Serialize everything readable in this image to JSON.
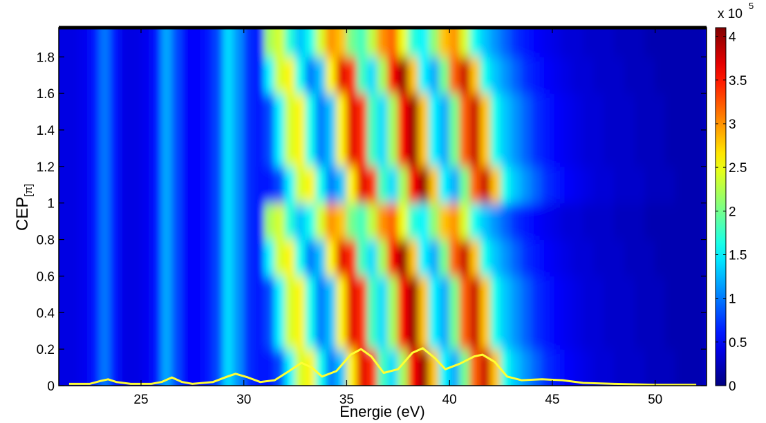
{
  "chart_data": {
    "type": "heatmap",
    "xlabel": "Energie (eV)",
    "ylabel": "CEP",
    "ylabel_sub": "[π]",
    "xlim": [
      21,
      52.5
    ],
    "ylim": [
      0,
      1.96
    ],
    "xticks": [
      25,
      30,
      35,
      40,
      45,
      50
    ],
    "yticks": [
      0,
      0.2,
      0.4,
      0.6,
      0.8,
      1,
      1.2,
      1.4,
      1.6,
      1.8
    ],
    "colormap": "jet",
    "clim": [
      0,
      4.1
    ],
    "colorbar_ticks": [
      0,
      0.5,
      1,
      1.5,
      2,
      2.5,
      3,
      3.5,
      4
    ],
    "colorbar_label": "x 10",
    "colorbar_exponent": "5",
    "x_edges": [
      21,
      21.5,
      22,
      22.5,
      23,
      23.5,
      24,
      24.5,
      25,
      25.5,
      26,
      26.5,
      27,
      27.5,
      28,
      28.5,
      29,
      29.5,
      30,
      30.5,
      31,
      31.5,
      32,
      32.5,
      33,
      33.5,
      34,
      34.5,
      35,
      35.5,
      36,
      36.5,
      37,
      37.5,
      38,
      38.5,
      39,
      39.5,
      40,
      40.5,
      41,
      41.5,
      42,
      42.5,
      43,
      43.5,
      44,
      44.5,
      45,
      45.5,
      46,
      46.5,
      47,
      47.5,
      48,
      48.5,
      49,
      49.5,
      50,
      50.5,
      51,
      51.5,
      52,
      52.5
    ],
    "y_edges": [
      0,
      0.2,
      0.4,
      0.6,
      0.8,
      1,
      1.2,
      1.4,
      1.6,
      1.8,
      1.96
    ],
    "z": [
      [
        0.4,
        0.4,
        0.45,
        0.6,
        1.0,
        0.6,
        0.4,
        0.4,
        0.45,
        0.6,
        1.2,
        0.8,
        0.5,
        0.5,
        0.6,
        0.8,
        1.4,
        1.1,
        0.7,
        0.6,
        0.6,
        0.8,
        1.5,
        2.4,
        2.6,
        1.6,
        1.0,
        1.3,
        2.6,
        3.7,
        3.4,
        1.8,
        1.4,
        2.2,
        3.6,
        4.0,
        2.8,
        1.5,
        1.2,
        2.0,
        3.2,
        3.8,
        2.8,
        1.6,
        1.3,
        1.1,
        0.9,
        0.7,
        0.6,
        0.5,
        0.45,
        0.4,
        0.35,
        0.35,
        0.3,
        0.3,
        0.3,
        0.25,
        0.25,
        0.25,
        0.2,
        0.2,
        0.2
      ],
      [
        0.4,
        0.4,
        0.45,
        0.6,
        1.0,
        0.6,
        0.4,
        0.4,
        0.45,
        0.6,
        1.2,
        0.8,
        0.5,
        0.5,
        0.6,
        0.8,
        1.4,
        1.1,
        0.7,
        0.6,
        0.8,
        1.5,
        2.4,
        2.6,
        1.6,
        1.0,
        1.3,
        2.6,
        3.7,
        3.4,
        1.8,
        1.4,
        2.2,
        3.6,
        4.0,
        2.8,
        1.5,
        1.2,
        2.0,
        3.2,
        3.8,
        2.8,
        1.6,
        1.3,
        1.1,
        0.9,
        0.7,
        0.6,
        0.5,
        0.45,
        0.4,
        0.35,
        0.35,
        0.3,
        0.3,
        0.3,
        0.25,
        0.25,
        0.25,
        0.2,
        0.2,
        0.2,
        0.2
      ],
      [
        0.4,
        0.4,
        0.45,
        0.6,
        1.0,
        0.6,
        0.4,
        0.4,
        0.45,
        0.6,
        1.2,
        0.8,
        0.5,
        0.5,
        0.6,
        0.8,
        1.4,
        1.1,
        0.7,
        0.6,
        0.8,
        1.5,
        2.4,
        2.6,
        1.6,
        1.0,
        1.3,
        2.6,
        3.7,
        3.4,
        1.8,
        1.4,
        2.2,
        3.6,
        4.0,
        2.8,
        1.5,
        1.2,
        2.0,
        3.2,
        3.8,
        2.8,
        1.6,
        1.3,
        1.1,
        0.9,
        0.7,
        0.6,
        0.5,
        0.45,
        0.4,
        0.35,
        0.35,
        0.3,
        0.3,
        0.3,
        0.25,
        0.25,
        0.25,
        0.2,
        0.2,
        0.2,
        0.2
      ],
      [
        0.4,
        0.4,
        0.45,
        0.6,
        1.0,
        0.6,
        0.4,
        0.4,
        0.45,
        0.6,
        1.2,
        0.8,
        0.5,
        0.5,
        0.6,
        0.8,
        1.4,
        1.1,
        0.7,
        0.6,
        1.5,
        2.4,
        2.6,
        1.6,
        1.0,
        1.3,
        2.6,
        3.7,
        3.4,
        1.8,
        1.4,
        2.2,
        3.6,
        4.0,
        2.8,
        1.5,
        1.2,
        2.0,
        3.2,
        3.8,
        2.8,
        1.6,
        1.3,
        1.1,
        0.9,
        0.7,
        0.6,
        0.5,
        0.45,
        0.4,
        0.35,
        0.35,
        0.3,
        0.3,
        0.3,
        0.25,
        0.25,
        0.25,
        0.2,
        0.2,
        0.2,
        0.2,
        0.2
      ],
      [
        0.4,
        0.4,
        0.45,
        0.6,
        1.0,
        0.6,
        0.4,
        0.4,
        0.45,
        0.6,
        1.2,
        0.8,
        0.5,
        0.5,
        0.6,
        0.8,
        1.4,
        1.1,
        0.7,
        0.6,
        2.2,
        2.4,
        1.7,
        1.3,
        1.6,
        2.4,
        3.0,
        2.8,
        2.0,
        1.8,
        2.3,
        3.0,
        3.2,
        2.5,
        1.7,
        1.5,
        2.1,
        2.8,
        3.0,
        2.4,
        1.6,
        1.3,
        1.1,
        0.9,
        0.7,
        0.6,
        0.5,
        0.45,
        0.4,
        0.35,
        0.35,
        0.3,
        0.3,
        0.3,
        0.25,
        0.25,
        0.25,
        0.2,
        0.2,
        0.2,
        0.2,
        0.2,
        0.2
      ],
      [
        0.4,
        0.4,
        0.45,
        0.6,
        1.0,
        0.6,
        0.4,
        0.4,
        0.45,
        0.6,
        1.2,
        0.8,
        0.5,
        0.5,
        0.6,
        0.8,
        1.4,
        1.1,
        0.7,
        0.6,
        0.6,
        0.8,
        1.5,
        2.4,
        2.6,
        1.6,
        1.0,
        1.3,
        2.6,
        3.7,
        3.4,
        1.8,
        1.4,
        2.2,
        3.6,
        4.0,
        2.8,
        1.5,
        1.2,
        2.0,
        3.2,
        3.8,
        2.8,
        1.6,
        1.3,
        1.1,
        0.9,
        0.7,
        0.6,
        0.5,
        0.45,
        0.4,
        0.35,
        0.35,
        0.3,
        0.3,
        0.3,
        0.25,
        0.25,
        0.25,
        0.2,
        0.2,
        0.2
      ],
      [
        0.4,
        0.4,
        0.45,
        0.6,
        1.0,
        0.6,
        0.4,
        0.4,
        0.45,
        0.6,
        1.2,
        0.8,
        0.5,
        0.5,
        0.6,
        0.8,
        1.4,
        1.1,
        0.7,
        0.6,
        0.8,
        1.5,
        2.4,
        2.6,
        1.6,
        1.0,
        1.3,
        2.6,
        3.7,
        3.4,
        1.8,
        1.4,
        2.2,
        3.6,
        4.0,
        2.8,
        1.5,
        1.2,
        2.0,
        3.2,
        3.8,
        2.8,
        1.6,
        1.3,
        1.1,
        0.9,
        0.7,
        0.6,
        0.5,
        0.45,
        0.4,
        0.35,
        0.35,
        0.3,
        0.3,
        0.3,
        0.25,
        0.25,
        0.25,
        0.2,
        0.2,
        0.2,
        0.2
      ],
      [
        0.4,
        0.4,
        0.45,
        0.6,
        1.0,
        0.6,
        0.4,
        0.4,
        0.45,
        0.6,
        1.2,
        0.8,
        0.5,
        0.5,
        0.6,
        0.8,
        1.4,
        1.1,
        0.7,
        0.6,
        0.8,
        1.5,
        2.4,
        2.6,
        1.6,
        1.0,
        1.3,
        2.6,
        3.7,
        3.4,
        1.8,
        1.4,
        2.2,
        3.6,
        4.0,
        2.8,
        1.5,
        1.2,
        2.0,
        3.2,
        3.8,
        2.8,
        1.6,
        1.3,
        1.1,
        0.9,
        0.7,
        0.6,
        0.5,
        0.45,
        0.4,
        0.35,
        0.35,
        0.3,
        0.3,
        0.3,
        0.25,
        0.25,
        0.25,
        0.2,
        0.2,
        0.2,
        0.2
      ],
      [
        0.4,
        0.4,
        0.45,
        0.6,
        1.0,
        0.6,
        0.4,
        0.4,
        0.45,
        0.6,
        1.2,
        0.8,
        0.5,
        0.5,
        0.6,
        0.8,
        1.4,
        1.1,
        0.7,
        0.6,
        1.5,
        2.4,
        2.6,
        1.6,
        1.0,
        1.3,
        2.6,
        3.7,
        3.4,
        1.8,
        1.4,
        2.2,
        3.6,
        4.0,
        2.8,
        1.5,
        1.2,
        2.0,
        3.2,
        3.8,
        2.8,
        1.6,
        1.3,
        1.1,
        0.9,
        0.7,
        0.6,
        0.5,
        0.45,
        0.4,
        0.35,
        0.35,
        0.3,
        0.3,
        0.3,
        0.25,
        0.25,
        0.25,
        0.2,
        0.2,
        0.2,
        0.2,
        0.2
      ],
      [
        0.4,
        0.4,
        0.45,
        0.6,
        1.0,
        0.6,
        0.4,
        0.4,
        0.45,
        0.6,
        1.2,
        0.8,
        0.5,
        0.5,
        0.6,
        0.8,
        1.4,
        1.1,
        0.7,
        0.6,
        2.2,
        2.4,
        1.7,
        1.3,
        1.6,
        2.4,
        3.0,
        2.8,
        2.0,
        1.8,
        2.3,
        3.0,
        3.2,
        2.5,
        1.7,
        1.5,
        2.1,
        2.8,
        3.0,
        2.4,
        1.6,
        1.3,
        1.1,
        0.9,
        0.7,
        0.6,
        0.5,
        0.45,
        0.4,
        0.35,
        0.35,
        0.3,
        0.3,
        0.3,
        0.25,
        0.25,
        0.25,
        0.2,
        0.2,
        0.2,
        0.2,
        0.2,
        0.2
      ]
    ],
    "line": {
      "color": "#ffff33",
      "x": [
        21.5,
        22,
        22.5,
        23,
        23.4,
        23.8,
        24.5,
        25.5,
        26,
        26.5,
        27,
        27.5,
        28.5,
        29.2,
        29.6,
        30.2,
        30.8,
        31.5,
        32.2,
        32.8,
        33.3,
        33.8,
        34.5,
        35.2,
        35.7,
        36.2,
        36.8,
        37.5,
        38.2,
        38.7,
        39.3,
        39.8,
        40.5,
        41.2,
        41.6,
        42.2,
        42.8,
        43.5,
        44.5,
        45.5,
        46.5,
        48,
        50,
        52
      ],
      "values": [
        0.01,
        0.01,
        0.01,
        0.025,
        0.035,
        0.02,
        0.01,
        0.01,
        0.02,
        0.045,
        0.02,
        0.01,
        0.02,
        0.05,
        0.065,
        0.045,
        0.02,
        0.03,
        0.08,
        0.125,
        0.1,
        0.05,
        0.08,
        0.17,
        0.2,
        0.16,
        0.07,
        0.09,
        0.18,
        0.205,
        0.15,
        0.09,
        0.12,
        0.16,
        0.17,
        0.13,
        0.05,
        0.03,
        0.035,
        0.03,
        0.015,
        0.01,
        0.005,
        0.005
      ]
    }
  }
}
